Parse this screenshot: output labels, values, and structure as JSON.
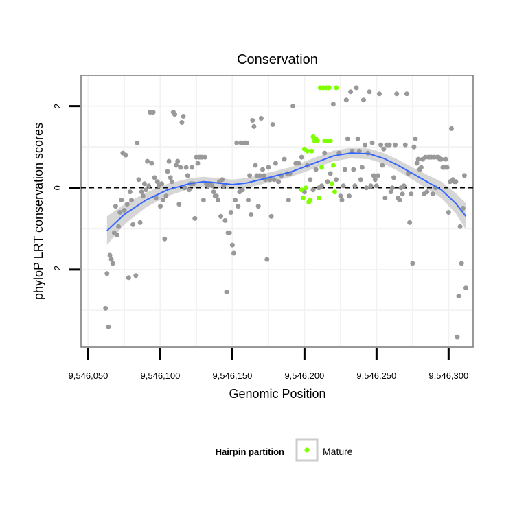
{
  "chart_data": {
    "type": "scatter",
    "title": "Conservation",
    "xlabel": "Genomic Position",
    "ylabel": "phyloP LRT conservation scores",
    "xlim": [
      9546045,
      9546317
    ],
    "ylim": [
      -3.9,
      2.75
    ],
    "x_ticks": [
      9546050,
      9546100,
      9546150,
      9546200,
      9546250,
      9546300
    ],
    "x_tick_labels": [
      "9,546,050",
      "9,546,100",
      "9,546,150",
      "9,546,200",
      "9,546,250",
      "9,546,300"
    ],
    "y_ticks": [
      -2,
      0,
      2
    ],
    "y_tick_labels": [
      "-2",
      "0",
      "2"
    ],
    "reference_line_y": 0,
    "grid": true,
    "legend": {
      "title": "Hairpin partition",
      "entries": [
        "Mature"
      ],
      "placement": "bottom"
    },
    "colors": {
      "other": "#999999",
      "mature": "#80ff00",
      "smooth": "#3366ff",
      "band": "#cccccc",
      "panel_border": "#7f7f7f",
      "grid": "#f2f2f2"
    },
    "series": [
      {
        "group": "other",
        "points": [
          [
            9546062,
            -2.95
          ],
          [
            9546063,
            -2.1
          ],
          [
            9546064,
            -3.4
          ],
          [
            9546065,
            -1.65
          ],
          [
            9546066,
            -1.75
          ],
          [
            9546067,
            -1.85
          ],
          [
            9546068,
            -1.1
          ],
          [
            9546069,
            -0.45
          ],
          [
            9546070,
            -1.15
          ],
          [
            9546071,
            -0.95
          ],
          [
            9546072,
            -0.6
          ],
          [
            9546073,
            -0.3
          ],
          [
            9546074,
            0.85
          ],
          [
            9546075,
            -0.55
          ],
          [
            9546076,
            0.8
          ],
          [
            9546077,
            -0.4
          ],
          [
            9546078,
            -2.2
          ],
          [
            9546079,
            -0.1
          ],
          [
            9546080,
            -0.3
          ],
          [
            9546081,
            -0.9
          ],
          [
            9546083,
            -2.15
          ],
          [
            9546084,
            1.1
          ],
          [
            9546085,
            0.2
          ],
          [
            9546086,
            -0.85
          ],
          [
            9546087,
            -0.1
          ],
          [
            9546088,
            -0.2
          ],
          [
            9546089,
            0.1
          ],
          [
            9546090,
            -0.05
          ],
          [
            9546091,
            0.65
          ],
          [
            9546092,
            0.05
          ],
          [
            9546093,
            1.85
          ],
          [
            9546094,
            0.6
          ],
          [
            9546095,
            1.85
          ],
          [
            9546096,
            0.25
          ],
          [
            9546097,
            -0.25
          ],
          [
            9546098,
            0.15
          ],
          [
            9546099,
            0.05
          ],
          [
            9546100,
            -0.45
          ],
          [
            9546101,
            0.1
          ],
          [
            9546102,
            -0.3
          ],
          [
            9546103,
            -1.25
          ],
          [
            9546104,
            -0.2
          ],
          [
            9546105,
            0.4
          ],
          [
            9546106,
            0.65
          ],
          [
            9546107,
            0.25
          ],
          [
            9546108,
            0.15
          ],
          [
            9546109,
            1.85
          ],
          [
            9546110,
            1.8
          ],
          [
            9546111,
            0.55
          ],
          [
            9546112,
            0.65
          ],
          [
            9546113,
            -0.4
          ],
          [
            9546114,
            0.5
          ],
          [
            9546115,
            1.6
          ],
          [
            9546116,
            1.75
          ],
          [
            9546117,
            0.0
          ],
          [
            9546118,
            0.5
          ],
          [
            9546119,
            0.3
          ],
          [
            9546120,
            -0.05
          ],
          [
            9546121,
            0.1
          ],
          [
            9546122,
            0.5
          ],
          [
            9546123,
            0.1
          ],
          [
            9546124,
            -0.75
          ],
          [
            9546125,
            0.75
          ],
          [
            9546126,
            0.6
          ],
          [
            9546127,
            0.75
          ],
          [
            9546128,
            0.75
          ],
          [
            9546129,
            0.75
          ],
          [
            9546130,
            -0.3
          ],
          [
            9546131,
            0.75
          ],
          [
            9546132,
            0.1
          ],
          [
            9546133,
            0.05
          ],
          [
            9546134,
            0.1
          ],
          [
            9546135,
            0.1
          ],
          [
            9546136,
            0.05
          ],
          [
            9546137,
            -0.1
          ],
          [
            9546138,
            -0.2
          ],
          [
            9546139,
            -0.2
          ],
          [
            9546140,
            -0.3
          ],
          [
            9546141,
            0.15
          ],
          [
            9546142,
            -0.7
          ],
          [
            9546143,
            0.2
          ],
          [
            9546144,
            0.05
          ],
          [
            9546145,
            -0.8
          ],
          [
            9546146,
            -2.55
          ],
          [
            9546147,
            -1.1
          ],
          [
            9546148,
            -1.1
          ],
          [
            9546149,
            -0.6
          ],
          [
            9546150,
            -1.4
          ],
          [
            9546151,
            -1.6
          ],
          [
            9546152,
            -0.3
          ],
          [
            9546153,
            1.1
          ],
          [
            9546154,
            -0.45
          ],
          [
            9546155,
            -0.1
          ],
          [
            9546156,
            1.1
          ],
          [
            9546157,
            -0.05
          ],
          [
            9546158,
            1.1
          ],
          [
            9546159,
            1.1
          ],
          [
            9546160,
            1.1
          ],
          [
            9546161,
            -0.3
          ],
          [
            9546162,
            0.3
          ],
          [
            9546163,
            -0.65
          ],
          [
            9546164,
            1.65
          ],
          [
            9546165,
            1.5
          ],
          [
            9546166,
            0.55
          ],
          [
            9546167,
            0.3
          ],
          [
            9546168,
            -0.45
          ],
          [
            9546169,
            0.3
          ],
          [
            9546170,
            1.7
          ],
          [
            9546171,
            0.45
          ],
          [
            9546172,
            0.3
          ],
          [
            9546173,
            0.2
          ],
          [
            9546174,
            -1.75
          ],
          [
            9546175,
            0.5
          ],
          [
            9546176,
            0.2
          ],
          [
            9546177,
            -0.7
          ],
          [
            9546178,
            1.55
          ],
          [
            9546179,
            0.2
          ],
          [
            9546180,
            0.6
          ],
          [
            9546182,
            0.15
          ],
          [
            9546184,
            0.3
          ],
          [
            9546186,
            0.7
          ],
          [
            9546188,
            0.35
          ],
          [
            9546189,
            -0.3
          ],
          [
            9546190,
            0.35
          ],
          [
            9546192,
            2.0
          ],
          [
            9546194,
            0.6
          ],
          [
            9546196,
            0.6
          ],
          [
            9546198,
            0.75
          ],
          [
            9546200,
            -0.1
          ],
          [
            9546202,
            0.55
          ],
          [
            9546204,
            0.2
          ],
          [
            9546206,
            -0.05
          ],
          [
            9546208,
            0.45
          ],
          [
            9546210,
            0.0
          ],
          [
            9546212,
            0.05
          ],
          [
            9546214,
            0.85
          ],
          [
            9546216,
            0.15
          ],
          [
            9546218,
            0.35
          ],
          [
            9546220,
            2.05
          ],
          [
            9546222,
            0.2
          ],
          [
            9546224,
            0.85
          ],
          [
            9546225,
            -0.2
          ],
          [
            9546226,
            -0.3
          ],
          [
            9546227,
            0.05
          ],
          [
            9546228,
            0.45
          ],
          [
            9546229,
            2.15
          ],
          [
            9546230,
            1.2
          ],
          [
            9546231,
            -0.2
          ],
          [
            9546232,
            2.35
          ],
          [
            9546233,
            0.9
          ],
          [
            9546234,
            0.45
          ],
          [
            9546235,
            0.05
          ],
          [
            9546236,
            2.45
          ],
          [
            9546237,
            1.2
          ],
          [
            9546238,
            0.9
          ],
          [
            9546239,
            0.2
          ],
          [
            9546240,
            0.5
          ],
          [
            9546241,
            2.15
          ],
          [
            9546242,
            1.05
          ],
          [
            9546243,
            0.0
          ],
          [
            9546244,
            0.85
          ],
          [
            9546245,
            2.35
          ],
          [
            9546246,
            0.05
          ],
          [
            9546247,
            1.1
          ],
          [
            9546248,
            0.3
          ],
          [
            9546249,
            0.2
          ],
          [
            9546250,
            0.05
          ],
          [
            9546251,
            0.3
          ],
          [
            9546252,
            2.3
          ],
          [
            9546253,
            1.05
          ],
          [
            9546254,
            0.55
          ],
          [
            9546255,
            0.95
          ],
          [
            9546256,
            -0.25
          ],
          [
            9546257,
            1.05
          ],
          [
            9546258,
            1.05
          ],
          [
            9546259,
            1.05
          ],
          [
            9546260,
            -0.1
          ],
          [
            9546261,
            0.0
          ],
          [
            9546262,
            0.25
          ],
          [
            9546263,
            1.05
          ],
          [
            9546264,
            2.3
          ],
          [
            9546265,
            -0.25
          ],
          [
            9546266,
            -0.3
          ],
          [
            9546267,
            0.0
          ],
          [
            9546268,
            -0.15
          ],
          [
            9546269,
            0.05
          ],
          [
            9546270,
            1.05
          ],
          [
            9546271,
            2.3
          ],
          [
            9546272,
            0.35
          ],
          [
            9546273,
            -0.85
          ],
          [
            9546274,
            -0.15
          ],
          [
            9546275,
            -1.85
          ],
          [
            9546276,
            1.0
          ],
          [
            9546277,
            1.2
          ],
          [
            9546278,
            0.6
          ],
          [
            9546279,
            0.7
          ],
          [
            9546280,
            0.45
          ],
          [
            9546281,
            0.5
          ],
          [
            9546282,
            0.7
          ],
          [
            9546283,
            -0.15
          ],
          [
            9546284,
            0.75
          ],
          [
            9546285,
            -0.1
          ],
          [
            9546286,
            0.75
          ],
          [
            9546287,
            0.75
          ],
          [
            9546288,
            0.75
          ],
          [
            9546289,
            -0.15
          ],
          [
            9546290,
            0.75
          ],
          [
            9546291,
            0.0
          ],
          [
            9546292,
            0.75
          ],
          [
            9546293,
            0.75
          ],
          [
            9546294,
            0.7
          ],
          [
            9546295,
            0.7
          ],
          [
            9546296,
            0.5
          ],
          [
            9546297,
            0.5
          ],
          [
            9546298,
            0.7
          ],
          [
            9546299,
            0.5
          ],
          [
            9546300,
            -0.6
          ],
          [
            9546301,
            0.15
          ],
          [
            9546302,
            1.45
          ],
          [
            9546303,
            0.2
          ],
          [
            9546304,
            0.15
          ],
          [
            9546305,
            0.15
          ],
          [
            9546306,
            -3.65
          ],
          [
            9546307,
            -2.65
          ],
          [
            9546308,
            -0.95
          ],
          [
            9546309,
            -1.85
          ],
          [
            9546310,
            -0.5
          ],
          [
            9546311,
            0.3
          ],
          [
            9546312,
            -2.45
          ]
        ]
      },
      {
        "group": "mature",
        "name": "Mature",
        "points": [
          [
            9546198,
            -0.05
          ],
          [
            9546199,
            -0.25
          ],
          [
            9546200,
            0.95
          ],
          [
            9546201,
            0.0
          ],
          [
            9546202,
            0.9
          ],
          [
            9546203,
            -0.35
          ],
          [
            9546204,
            -0.3
          ],
          [
            9546205,
            0.9
          ],
          [
            9546206,
            1.25
          ],
          [
            9546207,
            1.15
          ],
          [
            9546208,
            1.2
          ],
          [
            9546209,
            1.15
          ],
          [
            9546210,
            -0.25
          ],
          [
            9546211,
            2.45
          ],
          [
            9546212,
            0.5
          ],
          [
            9546213,
            2.45
          ],
          [
            9546214,
            1.15
          ],
          [
            9546215,
            2.45
          ],
          [
            9546216,
            1.15
          ],
          [
            9546217,
            2.45
          ],
          [
            9546218,
            1.15
          ],
          [
            9546219,
            0.1
          ],
          [
            9546220,
            0.55
          ],
          [
            9546221,
            -0.1
          ],
          [
            9546222,
            2.45
          ]
        ]
      }
    ],
    "smooth_fit": {
      "method": "loess",
      "x": [
        9546063,
        9546075,
        9546090,
        9546105,
        9546120,
        9546130,
        9546140,
        9546150,
        9546160,
        9546175,
        9546190,
        9546205,
        9546220,
        9546232,
        9546245,
        9546255,
        9546265,
        9546275,
        9546285,
        9546295,
        9546305,
        9546312
      ],
      "y": [
        -1.05,
        -0.65,
        -0.3,
        -0.05,
        0.1,
        0.15,
        0.12,
        0.08,
        0.12,
        0.25,
        0.38,
        0.58,
        0.78,
        0.85,
        0.83,
        0.72,
        0.55,
        0.35,
        0.15,
        -0.05,
        -0.38,
        -0.7
      ],
      "se": [
        0.35,
        0.25,
        0.18,
        0.15,
        0.13,
        0.12,
        0.12,
        0.12,
        0.12,
        0.12,
        0.12,
        0.13,
        0.13,
        0.13,
        0.13,
        0.13,
        0.14,
        0.15,
        0.17,
        0.2,
        0.25,
        0.32
      ]
    }
  }
}
